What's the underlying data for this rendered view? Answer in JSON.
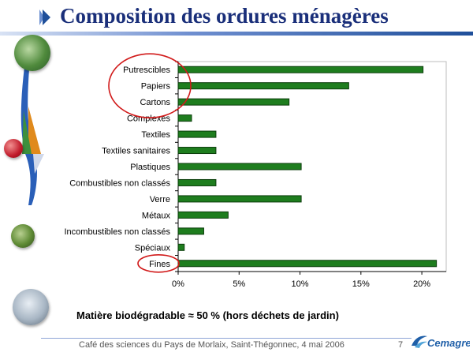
{
  "slide": {
    "title": "Composition des ordures ménagères",
    "note": "Matière biodégradable ≈ 50 % (hors déchets de jardin)",
    "footer": "Café des sciences du Pays de Morlaix, Saint-Thégonnec, 4 mai 2006",
    "page_number": "7",
    "logo_text": "Cemagref"
  },
  "colors": {
    "bar": "#1e7d1e",
    "bar_border": "#0b3d0b",
    "title": "#1a2f7a",
    "highlight": "#d11a1a"
  },
  "chart_data": {
    "type": "bar",
    "orientation": "horizontal",
    "categories": [
      "Putrescibles",
      "Papiers",
      "Cartons",
      "Complexes",
      "Textiles",
      "Textiles sanitaires",
      "Plastiques",
      "Combustibles non classés",
      "Verre",
      "Métaux",
      "Incombustibles non classés",
      "Spéciaux",
      "Fines"
    ],
    "values": [
      20.1,
      14.0,
      9.1,
      1.1,
      3.1,
      3.1,
      10.1,
      3.1,
      10.1,
      4.1,
      2.1,
      0.5,
      21.2
    ],
    "xlim": [
      0,
      22
    ],
    "ticks": [
      "0%",
      "5%",
      "10%",
      "15%",
      "20%"
    ],
    "tick_values": [
      0,
      5,
      10,
      15,
      20
    ],
    "grid": false,
    "legend": "none",
    "highlighted": [
      "Putrescibles",
      "Papiers",
      "Cartons",
      "Fines"
    ]
  }
}
